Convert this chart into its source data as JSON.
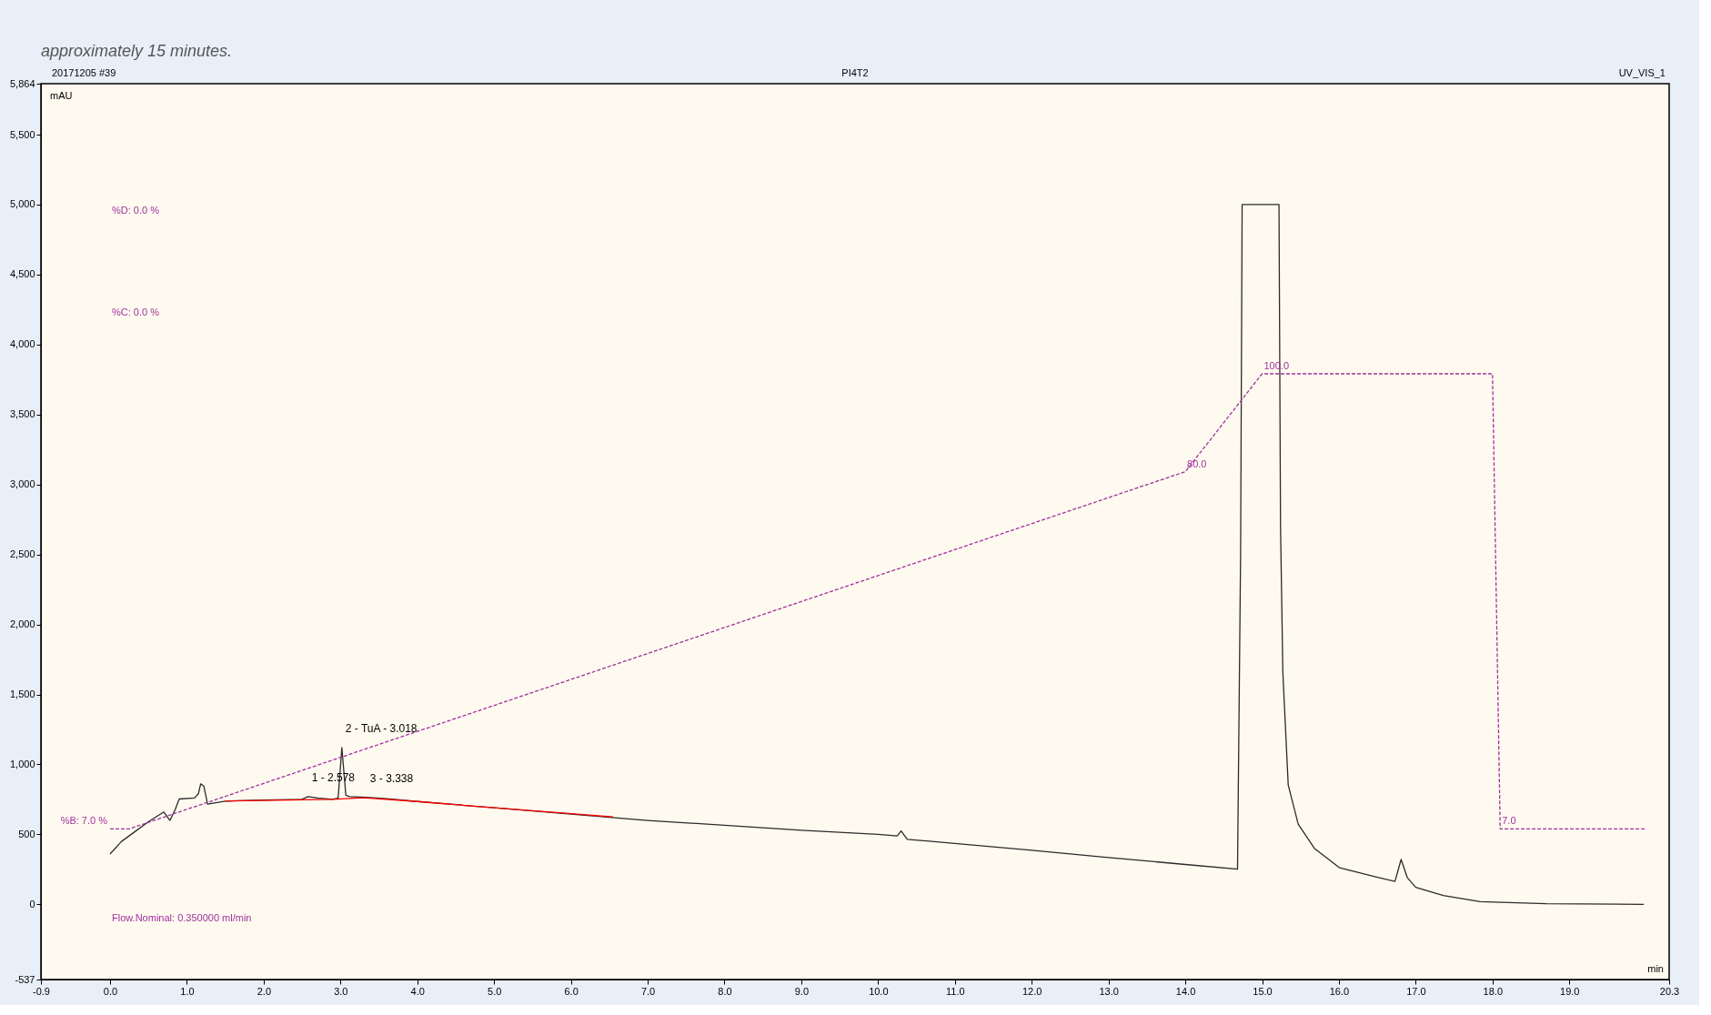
{
  "chart_data": {
    "type": "line",
    "title": "PI4T2",
    "xlabel": "min",
    "ylabel": "mAU",
    "xlim": [
      -0.9,
      20.3
    ],
    "ylim": [
      -537,
      5864
    ],
    "xticks": [
      -0.9,
      {
        "value": 0,
        "label": "0.0"
      },
      {
        "value": 1,
        "label": "1.0"
      },
      {
        "value": 2,
        "label": "2.0"
      },
      {
        "value": 3,
        "label": "3.0"
      },
      {
        "value": 4,
        "label": "4.0"
      },
      {
        "value": 5,
        "label": "5.0"
      },
      {
        "value": 6,
        "label": "6.0"
      },
      {
        "value": 7,
        "label": "7.0"
      },
      {
        "value": 8,
        "label": "8.0"
      },
      {
        "value": 9,
        "label": "9.0"
      },
      {
        "value": 10,
        "label": "10.0"
      },
      {
        "value": 11,
        "label": "11.0"
      },
      {
        "value": 12,
        "label": "12.0"
      },
      {
        "value": 13,
        "label": "13.0"
      },
      {
        "value": 14,
        "label": "14.0"
      },
      {
        "value": 15,
        "label": "15.0"
      },
      {
        "value": 16,
        "label": "16.0"
      },
      {
        "value": 17,
        "label": "17.0"
      },
      {
        "value": 18,
        "label": "18.0"
      },
      {
        "value": 19,
        "label": "19.0"
      },
      20.3
    ],
    "yticks": [
      -537,
      0,
      500,
      {
        "value": 1000,
        "label": "1,000"
      },
      {
        "value": 1500,
        "label": "1,500"
      },
      {
        "value": 2000,
        "label": "2,000"
      },
      {
        "value": 2500,
        "label": "2,500"
      },
      {
        "value": 3000,
        "label": "3,000"
      },
      {
        "value": 3500,
        "label": "3,500"
      },
      {
        "value": 4000,
        "label": "4,000"
      },
      {
        "value": 4500,
        "label": "4,500"
      },
      {
        "value": 5000,
        "label": "5,000"
      },
      {
        "value": 5500,
        "label": "5,500"
      },
      {
        "value": 5864,
        "label": "5,864"
      }
    ],
    "grid": false,
    "y2lim": [
      -23.8,
      159.3
    ],
    "series": [
      {
        "color": "#2b2b2b",
        "x": [
          0,
          0.15,
          0.3,
          0.5,
          0.7,
          0.78,
          0.85,
          0.9,
          1.1,
          1.15,
          1.18,
          1.22,
          1.27,
          1.5,
          2.0,
          2.5,
          2.578,
          2.7,
          2.9,
          2.97,
          3.018,
          3.07,
          3.12,
          3.338,
          3.6,
          4.0,
          5.0,
          6.0,
          7.0,
          8.0,
          9.0,
          10.0,
          10.25,
          10.3,
          10.38,
          11.0,
          12.0,
          13.0,
          14.0,
          14.68,
          14.72,
          14.74,
          15.0,
          15.22,
          15.24,
          15.27,
          15.34,
          15.47,
          15.68,
          16.01,
          16.42,
          16.73,
          16.81,
          16.89,
          17.0,
          17.36,
          17.84,
          18.7,
          19.97
        ],
        "values": [
          360,
          450,
          510,
          590,
          660,
          600,
          680,
          753,
          760,
          790,
          861,
          846,
          716,
          738,
          745,
          750,
          770,
          760,
          750,
          760,
          1120,
          780,
          770,
          765,
          755,
          735,
          690,
          645,
          600,
          565,
          530,
          500,
          489,
          525,
          465,
          435,
          386,
          335,
          285,
          252,
          2500,
          5000,
          5000,
          5000,
          2700,
          1660,
          853,
          573,
          401,
          261,
          204,
          164,
          321,
          192,
          122,
          64,
          20,
          5,
          0
        ]
      },
      {
        "color": "#ff0000",
        "x": [
          1.5,
          2.9,
          3.3,
          4.0,
          5.0,
          6.55
        ],
        "values": [
          738,
          750,
          762,
          735,
          690,
          625
        ]
      },
      {
        "color": "#a030a0",
        "line_style": "dashed",
        "axis": "y2",
        "x": [
          0,
          0.25,
          14.0,
          15.0,
          18.0,
          18.1,
          20.0
        ],
        "values": [
          7,
          7,
          80,
          100,
          100,
          7,
          7
        ],
        "value_labels": [
          "%B: 7.0 %",
          null,
          "80.0",
          "100.0",
          null,
          "7.0",
          null
        ]
      }
    ],
    "annotations": [
      "approximately 15 minutes.",
      "20171205 #39",
      "UV_VIS_1",
      "%D: 0.0 %",
      "%C: 0.0 %",
      "Flow.Nominal: 0.350000 ml/min",
      {
        "text": "1 - 2.578",
        "x": 2.578,
        "y": 770
      },
      {
        "text": "2 - TuA - 3.018",
        "x": 3.018,
        "y": 1120
      },
      {
        "text": "3 - 3.338",
        "x": 3.338,
        "y": 765
      }
    ]
  }
}
